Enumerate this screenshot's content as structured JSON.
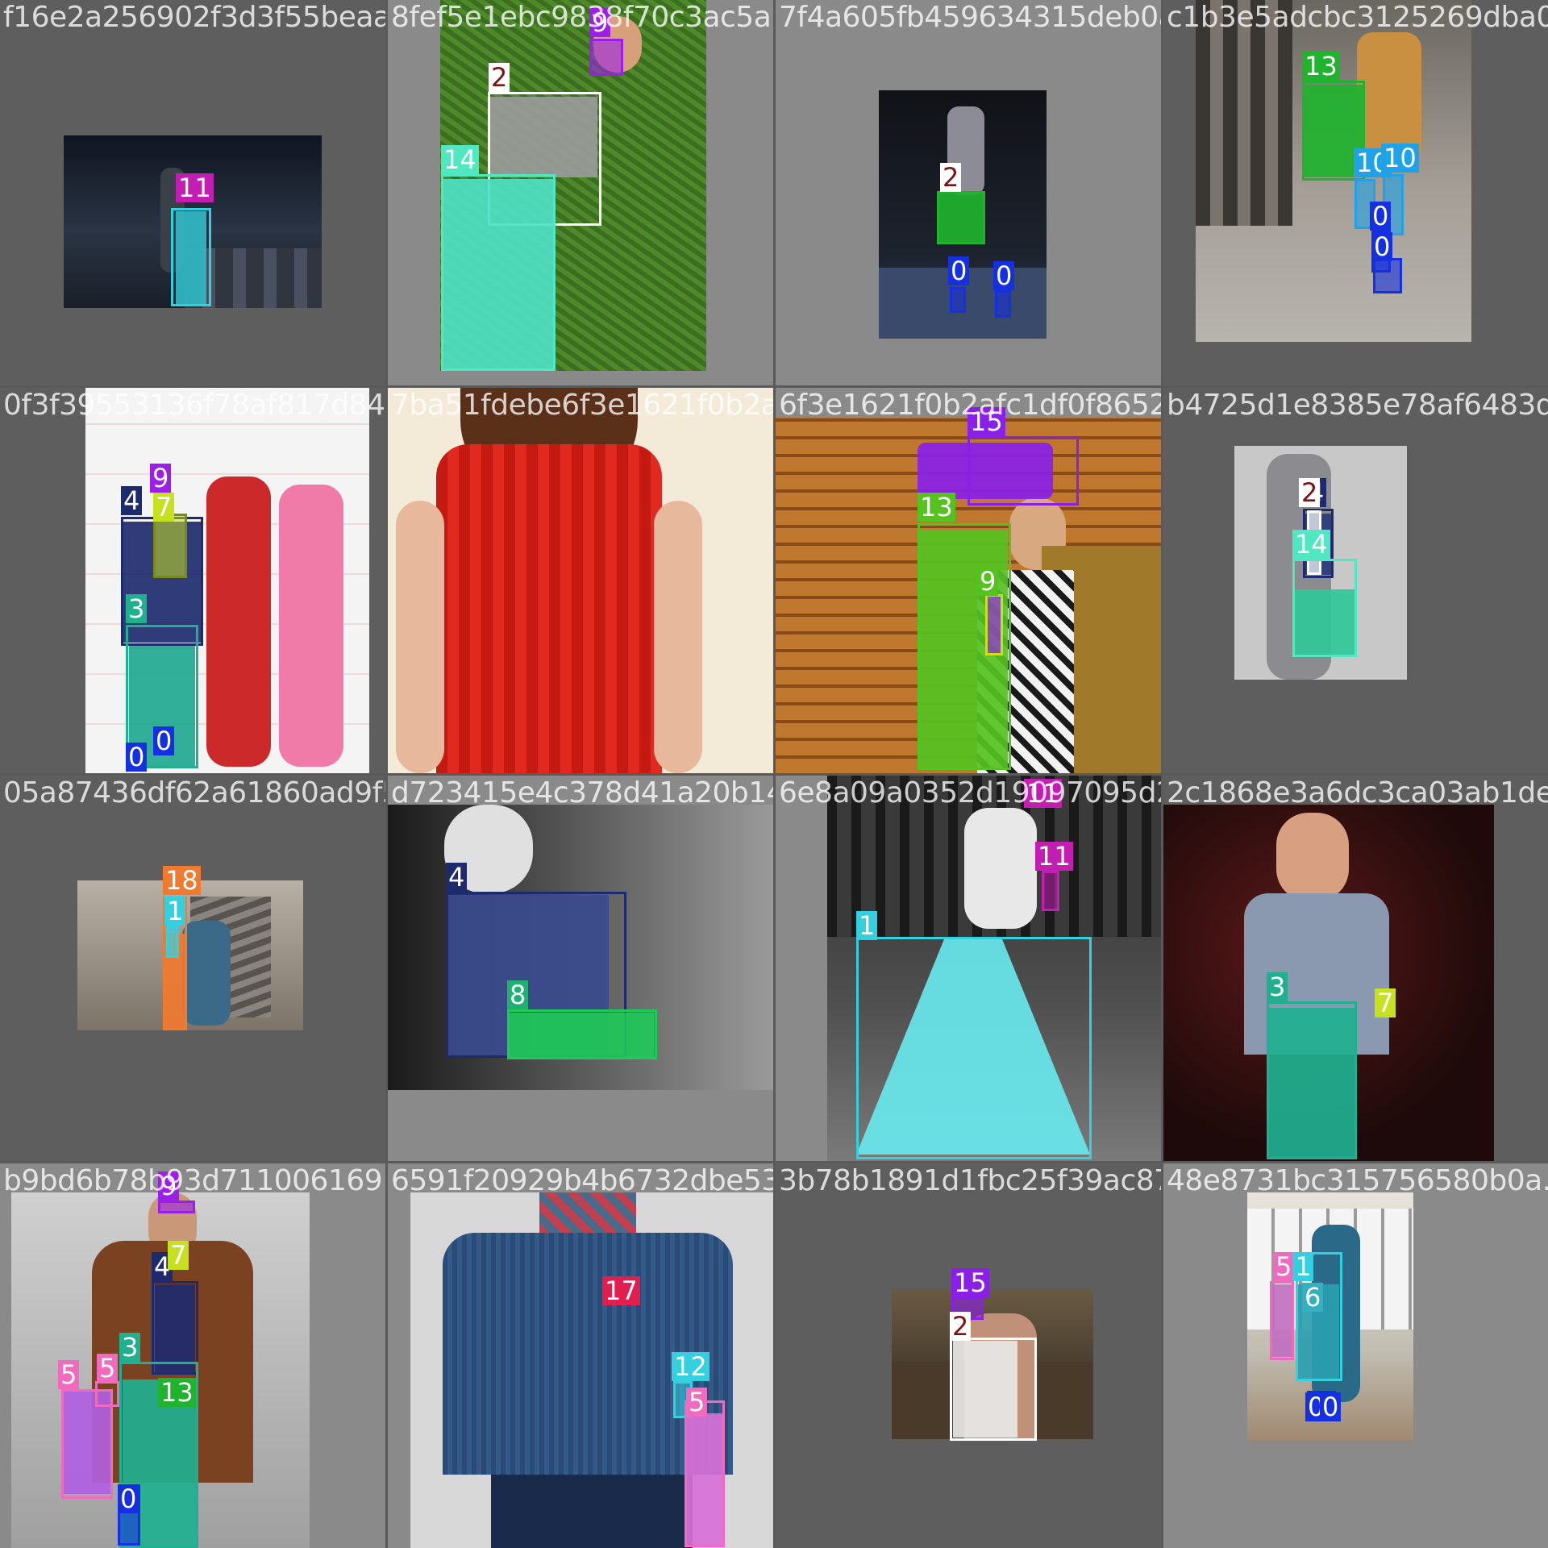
{
  "tiles": [
    {
      "filename": "f16e2a256902f3d3f55beaaae87632e6d.jpg",
      "background": "#5e5e5e",
      "image_tone": "#1d2430",
      "labels": [
        {
          "id": "11",
          "color": "#c21fb2"
        }
      ]
    },
    {
      "filename": "8fef5e1ebc9838f70c3ac5a197261a206f5.jpg",
      "background": "#8a8a8a",
      "image_tone": "#3f6e23",
      "labels": [
        {
          "id": "9",
          "color": "#9b1fe8"
        },
        {
          "id": "2",
          "color": "#ffffff"
        },
        {
          "id": "14",
          "color": "#50e8c0"
        }
      ]
    },
    {
      "filename": "7f4a605fb459634315deb0a8564b0.jpg",
      "background": "#8a8a8a",
      "image_tone": "#121418",
      "labels": [
        {
          "id": "2",
          "color": "#1fb32e"
        },
        {
          "id": "0",
          "color": "#1530e0"
        },
        {
          "id": "0",
          "color": "#1530e0"
        }
      ]
    },
    {
      "filename": "c1b3e5adcbc3125269dba0f1c.jpg",
      "background": "#5e5e5e",
      "image_tone": "#8f8a84",
      "labels": [
        {
          "id": "13",
          "color": "#1fb32e"
        },
        {
          "id": "10",
          "color": "#1fa2e8"
        },
        {
          "id": "10",
          "color": "#1fa2e8"
        },
        {
          "id": "0",
          "color": "#1530e0"
        },
        {
          "id": "0",
          "color": "#1530e0"
        }
      ]
    },
    {
      "filename": "0f3f39553136f78af817d8495f4a3b54f1d55d0.jpg",
      "background": "#5e5e5e",
      "image_tone": "#f1f1f1",
      "labels": [
        {
          "id": "9",
          "color": "#9b1fe8"
        },
        {
          "id": "4",
          "color": "#1e2a6e"
        },
        {
          "id": "7",
          "color": "#c7e01f"
        },
        {
          "id": "3",
          "color": "#20b090"
        },
        {
          "id": "0",
          "color": "#1530e0"
        },
        {
          "id": "0",
          "color": "#1530e0"
        }
      ]
    },
    {
      "filename": "7ba51fdebe6f3e1621f0b2afc1df0f86527b.jpg",
      "background": "#8a8a8a",
      "image_tone": "#f4ead8",
      "labels": []
    },
    {
      "filename": "6f3e1621f0b2afc1df0f86527b4725d1e.jpg",
      "background": "#8a8a8a",
      "image_tone": "#b8742e",
      "labels": [
        {
          "id": "15",
          "color": "#8a1fe8"
        },
        {
          "id": "13",
          "color": "#55c21f"
        },
        {
          "id": "9",
          "color": "#9b1fe8"
        }
      ]
    },
    {
      "filename": "b4725d1e8385e78af6483db1.jpg",
      "background": "#5e5e5e",
      "image_tone": "#c8c8c8",
      "labels": [
        {
          "id": "2",
          "color": "#ffffff"
        },
        {
          "id": "4",
          "color": "#1e2a6e"
        },
        {
          "id": "14",
          "color": "#50e8c0"
        }
      ]
    },
    {
      "filename": "05a87436df62a61860ad9f5d723415e4c.jpg",
      "background": "#5e5e5e",
      "image_tone": "#8e8478",
      "labels": [
        {
          "id": "18",
          "color": "#f07a30"
        },
        {
          "id": "1",
          "color": "#35d0e0"
        }
      ]
    },
    {
      "filename": "d723415e4c378d41a20b14416e8a09a0.jpg",
      "background": "#8a8a8a",
      "image_tone": "#6a6a6a",
      "labels": [
        {
          "id": "4",
          "color": "#1e2a6e"
        },
        {
          "id": "8",
          "color": "#20b070"
        }
      ]
    },
    {
      "filename": "6e8a09a0352d19097095d2d12c1868.jpg",
      "background": "#8a8a8a",
      "image_tone": "#2a2a2a",
      "labels": [
        {
          "id": "11",
          "color": "#c21fb2"
        },
        {
          "id": "1",
          "color": "#35d0e0"
        },
        {
          "id": "11",
          "color": "#c21fb2"
        }
      ]
    },
    {
      "filename": "2c1868e3a6dc3ca03ab1de0.jpg",
      "background": "#5e5e5e",
      "image_tone": "#2a1414",
      "labels": [
        {
          "id": "3",
          "color": "#20b090"
        },
        {
          "id": "7",
          "color": "#c7e01f"
        }
      ]
    },
    {
      "filename": "b9bd6b78b93d711006169146591f20929b4b6732dbe5.jpg",
      "background": "#8a8a8a",
      "image_tone": "#b8b8b8",
      "labels": [
        {
          "id": "9",
          "color": "#9b1fe8"
        },
        {
          "id": "7",
          "color": "#c7e01f"
        },
        {
          "id": "4",
          "color": "#1e2a6e"
        },
        {
          "id": "3",
          "color": "#20b090"
        },
        {
          "id": "5",
          "color": "#f06ac0"
        },
        {
          "id": "5",
          "color": "#f06ac0"
        },
        {
          "id": "13",
          "color": "#1fb32e"
        },
        {
          "id": "0",
          "color": "#1530e0"
        }
      ]
    },
    {
      "filename": "6591f20929b4b6732dbe53b78b1891d1fbc.jpg",
      "background": "#8a8a8a",
      "image_tone": "#d8d8d8",
      "labels": [
        {
          "id": "17",
          "color": "#e01f50"
        },
        {
          "id": "12",
          "color": "#35d0e0"
        },
        {
          "id": "5",
          "color": "#f06ac0"
        }
      ]
    },
    {
      "filename": "3b78b1891d1fbc25f39ac87348e8731bc.jpg",
      "background": "#5e5e5e",
      "image_tone": "#3c3428",
      "labels": [
        {
          "id": "15",
          "color": "#8a1fe8"
        },
        {
          "id": "2",
          "color": "#ffffff"
        }
      ]
    },
    {
      "filename": "48e8731bc315756580b0a.jpg",
      "background": "#8a8a8a",
      "image_tone": "#b0ac9e",
      "labels": [
        {
          "id": "5",
          "color": "#f06ac0"
        },
        {
          "id": "1",
          "color": "#35d0e0"
        },
        {
          "id": "6",
          "color": "#35b0c0"
        },
        {
          "id": "0",
          "color": "#1530e0"
        },
        {
          "id": "0",
          "color": "#1530e0"
        }
      ]
    }
  ]
}
